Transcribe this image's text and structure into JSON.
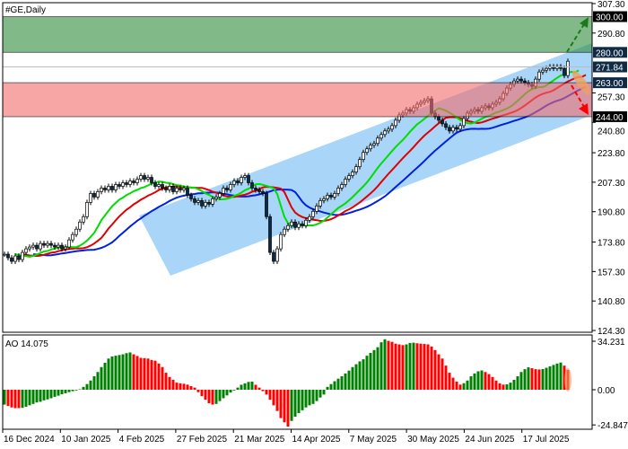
{
  "chart_data": [
    {
      "type": "candlestick",
      "title": "#GE,Daily",
      "y_ticks": [
        "307.30",
        "290.80",
        "257.30",
        "240.80",
        "223.80",
        "207.30",
        "190.80",
        "173.80",
        "157.30",
        "140.80",
        "124.30"
      ],
      "ylim": [
        124.3,
        307.3
      ],
      "x_ticks": [
        "16 Dec 2024",
        "10 Jan 2025",
        "4 Feb 2025",
        "27 Feb 2025",
        "21 Mar 2025",
        "14 Apr 2025",
        "7 May 2025",
        "30 May 2025",
        "24 Jun 2025",
        "17 Jul 2025"
      ],
      "closes": [
        167,
        165,
        163,
        166,
        164,
        168,
        170,
        171,
        172,
        170,
        173,
        172,
        173,
        172,
        171,
        172,
        170,
        171,
        175,
        178,
        181,
        185,
        188,
        196,
        201,
        199,
        202,
        204,
        203,
        205,
        203,
        206,
        205,
        207,
        206,
        208,
        207,
        209,
        211,
        209,
        210,
        207,
        205,
        206,
        204,
        203,
        205,
        202,
        204,
        203,
        204,
        200,
        198,
        196,
        197,
        194,
        196,
        195,
        198,
        199,
        201,
        204,
        203,
        206,
        208,
        207,
        210,
        211,
        207,
        204,
        203,
        202,
        201,
        188,
        168,
        163,
        170,
        178,
        181,
        183,
        185,
        182,
        184,
        183,
        186,
        188,
        191,
        194,
        197,
        198,
        200,
        199,
        201,
        204,
        206,
        209,
        211,
        213,
        216,
        220,
        224,
        226,
        228,
        229,
        232,
        234,
        236,
        237,
        239,
        242,
        245,
        246,
        248,
        247,
        249,
        251,
        252,
        253,
        254,
        246,
        244,
        242,
        240,
        238,
        236,
        238,
        237,
        239,
        243,
        246,
        247,
        248,
        247,
        249,
        250,
        249,
        251,
        252,
        254,
        257,
        260,
        262,
        264,
        265,
        264,
        263,
        262,
        261,
        265,
        269,
        270,
        271,
        272,
        271,
        272,
        271,
        267,
        275
      ],
      "moving_average_colors": {
        "fast": "#00dd00",
        "medium": "#e00000",
        "slow": "#0020e0"
      },
      "levels": [
        {
          "label": "300.00",
          "value": 300.0,
          "label_bg": "#000000"
        },
        {
          "label": "280.00",
          "value": 280.0,
          "label_bg": "#0f2a44"
        },
        {
          "label": "271.84",
          "value": 271.84,
          "label_bg": "#0f2a44"
        },
        {
          "label": "263.00",
          "value": 263.0,
          "label_bg": "#0f2a44"
        },
        {
          "label": "244.00",
          "value": 244.0,
          "label_bg": "#000000"
        }
      ],
      "zones": [
        {
          "name": "target-zone",
          "from": 280,
          "to": 300,
          "color": "#2e8b3a"
        },
        {
          "name": "support-zone",
          "from": 244,
          "to": 263,
          "color": "#f56a6a"
        }
      ],
      "channel_color": "#8cc8f5",
      "scenario_up_color": "#1a7a1a",
      "scenario_down_color": "#ff0000"
    },
    {
      "type": "bar",
      "title": "AO 14.075",
      "y_ticks": [
        "34.231",
        "0.00",
        "-24.847"
      ],
      "ylim": [
        -24.847,
        34.231
      ],
      "up_color": "#008000",
      "down_color": "#ff0000",
      "values": [
        -10.5,
        -11.5,
        -12.5,
        -13,
        -13,
        -12.8,
        -12,
        -11,
        -10,
        -9,
        -8.5,
        -7.5,
        -6.8,
        -6,
        -5,
        -4.2,
        -3.2,
        -2.5,
        -1.7,
        -1,
        -0.5,
        0.3,
        2,
        4,
        6.5,
        9.5,
        12.5,
        16,
        19,
        22,
        23.5,
        24,
        24.5,
        25,
        25.8,
        26.3,
        25,
        23.8,
        22.5,
        22.3,
        22,
        21,
        20.5,
        18.5,
        16,
        12,
        9,
        7,
        5,
        4.5,
        4.2,
        3.6,
        2.5,
        1.5,
        -1.7,
        -4.5,
        -7,
        -9.5,
        -10.5,
        -10,
        -8,
        -6,
        -4,
        -2,
        -0.5,
        1.5,
        3.5,
        4.5,
        5.5,
        5.7,
        3.5,
        1.5,
        -1,
        -3.4,
        -7,
        -11,
        -15,
        -20,
        -23,
        -26,
        -22,
        -19,
        -16.5,
        -14.5,
        -12.5,
        -11,
        -10,
        -8,
        -5.5,
        -3.4,
        2,
        4,
        6,
        7.8,
        9.5,
        11.5,
        13.5,
        16,
        18,
        20,
        21.5,
        24,
        26,
        28,
        30,
        33.5,
        35.6,
        34.5,
        33.8,
        32.5,
        32,
        31.5,
        32,
        33,
        33.2,
        32.8,
        32.5,
        32.3,
        32,
        30.5,
        28,
        25,
        22,
        17,
        12,
        8.5,
        5.7,
        3.6,
        4.6,
        6.5,
        9.5,
        11.5,
        13,
        13.6,
        12.5,
        11,
        9,
        6.5,
        4.5,
        3.6,
        3.8,
        5,
        7,
        9.5,
        12.5,
        14.5,
        15.8,
        15.2,
        14.5,
        14.3,
        14.6,
        15.5,
        16.5,
        17.5,
        18.5,
        19.2,
        17,
        14.075
      ]
    }
  ]
}
